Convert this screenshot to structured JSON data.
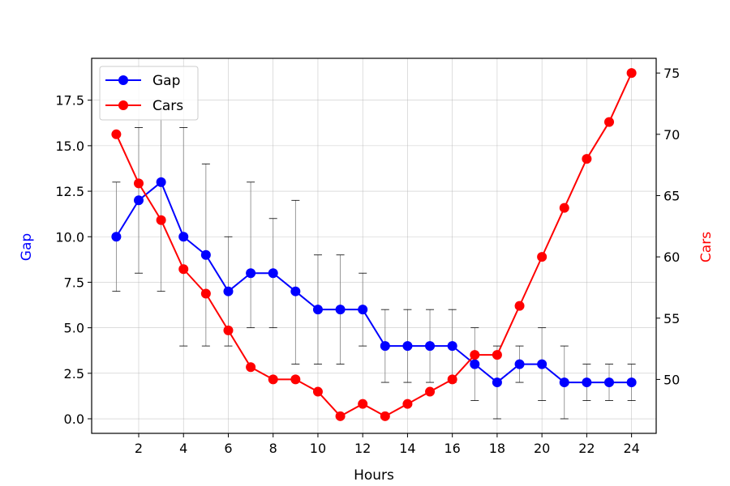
{
  "chart_data": {
    "type": "line",
    "xlabel": "Hours",
    "ylabel_left": "Gap",
    "ylabel_right": "Cars",
    "x": [
      1,
      2,
      3,
      4,
      5,
      6,
      7,
      8,
      9,
      10,
      11,
      12,
      13,
      14,
      15,
      16,
      17,
      18,
      19,
      20,
      21,
      22,
      23,
      24
    ],
    "xlim": [
      -0.1,
      25.1
    ],
    "x_ticks": [
      2,
      4,
      6,
      8,
      10,
      12,
      14,
      16,
      18,
      20,
      22,
      24
    ],
    "left_axis": {
      "ylim": [
        -0.8,
        19.8
      ],
      "ticks": [
        0.0,
        2.5,
        5.0,
        7.5,
        10.0,
        12.5,
        15.0,
        17.5
      ],
      "tick_labels": [
        "0.0",
        "2.5",
        "5.0",
        "7.5",
        "10.0",
        "12.5",
        "15.0",
        "17.5"
      ]
    },
    "right_axis": {
      "ylim": [
        45.6,
        76.2
      ],
      "ticks": [
        50,
        55,
        60,
        65,
        70,
        75
      ],
      "tick_labels": [
        "50",
        "55",
        "60",
        "65",
        "70",
        "75"
      ]
    },
    "grid": true,
    "legend_position": "top-left",
    "series": [
      {
        "name": "Gap",
        "axis": "left",
        "color": "#0000ff",
        "values": [
          10,
          12,
          13,
          10,
          9,
          7,
          8,
          8,
          7,
          6,
          6,
          6,
          4,
          4,
          4,
          4,
          3,
          2,
          3,
          3,
          2,
          2,
          2,
          2
        ],
        "error_low": [
          7,
          8,
          7,
          4,
          4,
          4,
          5,
          5,
          3,
          3,
          3,
          4,
          2,
          2,
          2,
          2,
          1,
          0,
          2,
          1,
          0,
          1,
          1,
          1
        ],
        "error_high": [
          13,
          16,
          17,
          16,
          14,
          10,
          13,
          11,
          12,
          9,
          9,
          8,
          6,
          6,
          6,
          6,
          5,
          4,
          4,
          5,
          4,
          3,
          3,
          3
        ]
      },
      {
        "name": "Cars",
        "axis": "right",
        "color": "#ff0000",
        "values": [
          70,
          66,
          63,
          59,
          57,
          54,
          51,
          50,
          50,
          49,
          47,
          48,
          47,
          48,
          49,
          50,
          52,
          52,
          56,
          60,
          64,
          68,
          71,
          75
        ]
      }
    ]
  }
}
